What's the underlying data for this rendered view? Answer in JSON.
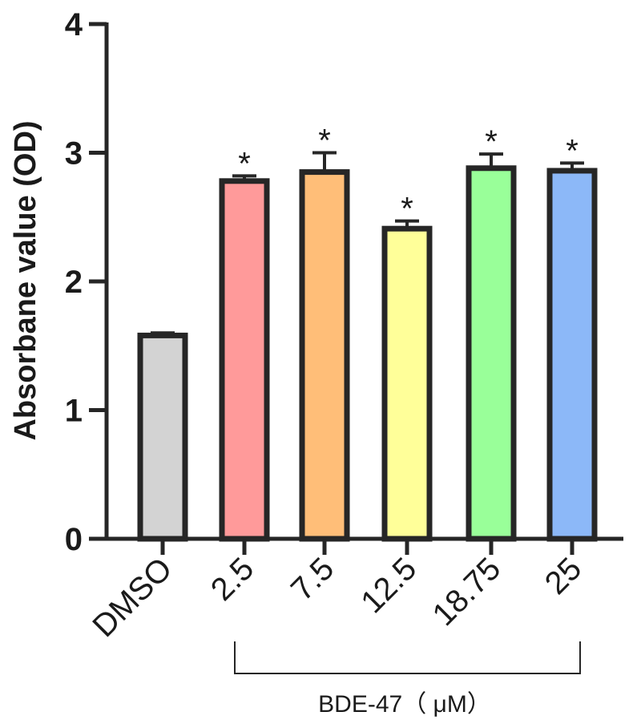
{
  "chart_data": {
    "type": "bar",
    "categories": [
      "DMSO",
      "2.5",
      "7.5",
      "12.5",
      "18.75",
      "25"
    ],
    "values": [
      1.58,
      2.78,
      2.85,
      2.41,
      2.88,
      2.86
    ],
    "errors": [
      0.02,
      0.04,
      0.15,
      0.06,
      0.11,
      0.06
    ],
    "significance": [
      "",
      "*",
      "*",
      "*",
      "*",
      "*"
    ],
    "colors": [
      "#d3d3d3",
      "#ff9a9a",
      "#ffbe78",
      "#ffff99",
      "#99ff99",
      "#8cb8f8"
    ],
    "edge_color": "#262626",
    "ylabel": "Absorbane value (OD)",
    "ylim": [
      0,
      4
    ],
    "yticks": [
      0,
      1,
      2,
      3,
      4
    ],
    "group": {
      "label": "BDE-47（ μM）",
      "members": [
        "2.5",
        "7.5",
        "12.5",
        "18.75",
        "25"
      ]
    },
    "grid": false
  }
}
